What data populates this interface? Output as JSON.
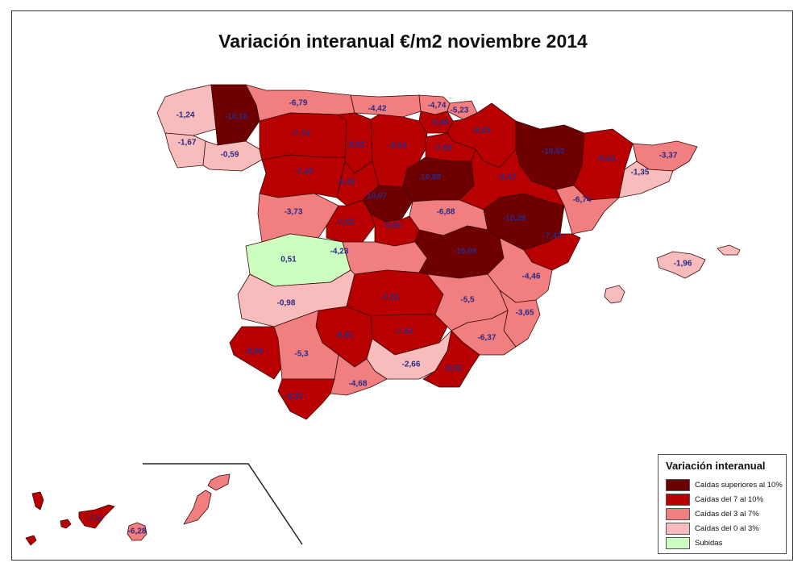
{
  "title": "Variación interanual €/m2 noviembre 2014",
  "legend": {
    "title": "Variación interanual",
    "items": [
      {
        "label": "Caídas superiores al 10%",
        "color": "#6e0000"
      },
      {
        "label": "Caídas del 7 al 10%",
        "color": "#b80000"
      },
      {
        "label": "Caídas del 3 al 7%",
        "color": "#f17f7f"
      },
      {
        "label": "Caídas del 0 al 3%",
        "color": "#f8bcbc"
      },
      {
        "label": "Subidas",
        "color": "#ccffbf"
      }
    ]
  },
  "provinces": [
    {
      "value": "-1,24",
      "category": 3
    },
    {
      "value": "-10,18",
      "category": 0
    },
    {
      "value": "-1,67",
      "category": 3
    },
    {
      "value": "-0,59",
      "category": 3
    },
    {
      "value": "-6,79",
      "category": 2
    },
    {
      "value": "-4,42",
      "category": 2
    },
    {
      "value": "-4,74",
      "category": 2
    },
    {
      "value": "-5,23",
      "category": 2
    },
    {
      "value": "-9,48",
      "category": 1
    },
    {
      "value": "-9,25",
      "category": 1
    },
    {
      "value": "-7,79",
      "category": 1
    },
    {
      "value": "-9,02",
      "category": 1
    },
    {
      "value": "-8,04",
      "category": 1
    },
    {
      "value": "-7,95",
      "category": 1
    },
    {
      "value": "-7,39",
      "category": 1
    },
    {
      "value": "-9,45",
      "category": 1
    },
    {
      "value": "-10,07",
      "category": 0
    },
    {
      "value": "-10,80",
      "category": 0
    },
    {
      "value": "-10,53",
      "category": 0
    },
    {
      "value": "-9,93",
      "category": 1
    },
    {
      "value": "-3,37",
      "category": 2
    },
    {
      "value": "-1,35",
      "category": 3
    },
    {
      "value": "-9,47",
      "category": 1
    },
    {
      "value": "-6,74",
      "category": 2
    },
    {
      "value": "-10,29",
      "category": 0
    },
    {
      "value": "-7,43",
      "category": 1
    },
    {
      "value": "-6,88",
      "category": 2
    },
    {
      "value": "-3,73",
      "category": 2
    },
    {
      "value": "-7,63",
      "category": 1
    },
    {
      "value": "-9,06",
      "category": 1
    },
    {
      "value": "0,51",
      "category": 4
    },
    {
      "value": "-4,23",
      "category": 2
    },
    {
      "value": "-10,08",
      "category": 0
    },
    {
      "value": "-4,46",
      "category": 2
    },
    {
      "value": "-0,98",
      "category": 3
    },
    {
      "value": "-7,81",
      "category": 1
    },
    {
      "value": "-5,5",
      "category": 2
    },
    {
      "value": "-3,65",
      "category": 2
    },
    {
      "value": "-6,37",
      "category": 2
    },
    {
      "value": "-9,91",
      "category": 1
    },
    {
      "value": "-7,65",
      "category": 1
    },
    {
      "value": "-8,96",
      "category": 1
    },
    {
      "value": "-5,3",
      "category": 2
    },
    {
      "value": "-2,66",
      "category": 3
    },
    {
      "value": "-9,02",
      "category": 1
    },
    {
      "value": "-4,68",
      "category": 2
    },
    {
      "value": "-9,37",
      "category": 1
    },
    {
      "value": "-1,96",
      "category": 3
    },
    {
      "value": "-7,5",
      "category": 1
    },
    {
      "value": "-6,28",
      "category": 2
    }
  ]
}
